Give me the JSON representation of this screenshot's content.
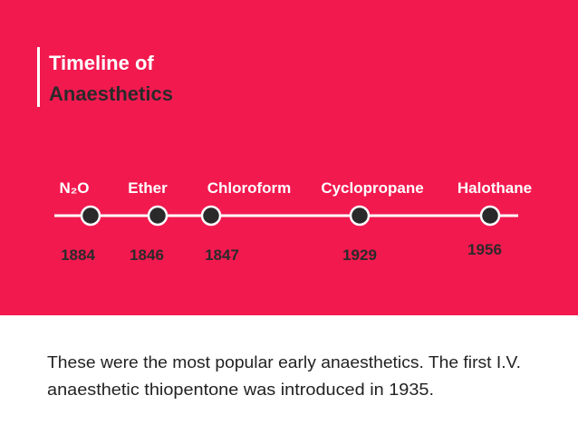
{
  "header": {
    "title_line1": "Timeline of",
    "title_line2": "Anaesthetics"
  },
  "timeline": [
    {
      "name": "N₂O",
      "year": "1884"
    },
    {
      "name": "Ether",
      "year": "1846"
    },
    {
      "name": "Chloroform",
      "year": "1847"
    },
    {
      "name": "Cyclopropane",
      "year": "1929"
    },
    {
      "name": "Halothane",
      "year": "1956"
    }
  ],
  "body": {
    "line1": "These were the most popular early anaesthetics. The first I.V.",
    "line2": "anaesthetic thiopentone was introduced in 1935."
  }
}
